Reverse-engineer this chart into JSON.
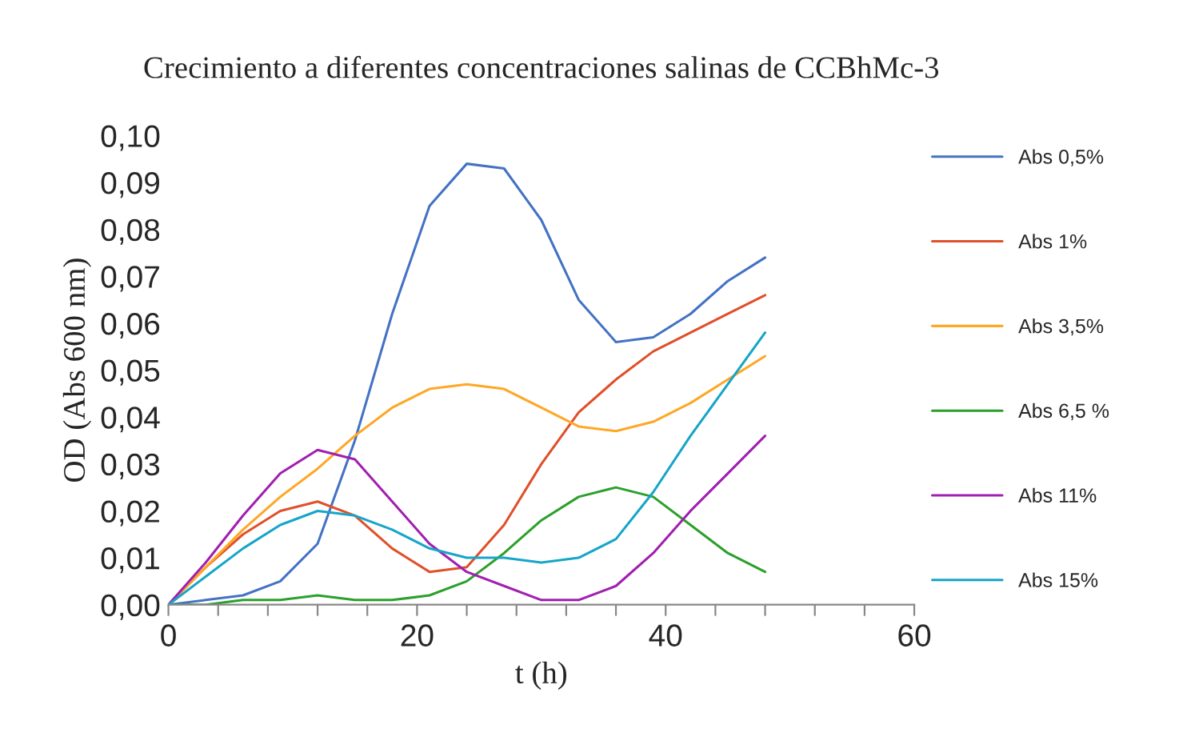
{
  "chart_data": {
    "type": "line",
    "title": "Crecimiento a diferentes concentraciones salinas de CCBhMc-3",
    "xlabel": "t (h)",
    "ylabel": "OD (Abs 600 nm)",
    "x": [
      0,
      3,
      6,
      9,
      12,
      15,
      18,
      21,
      24,
      27,
      30,
      33,
      36,
      39,
      42,
      45,
      48
    ],
    "series": [
      {
        "name": "Abs 0,5%",
        "color": "#4472c4",
        "values": [
          0,
          0.001,
          0.002,
          0.005,
          0.013,
          0.035,
          0.062,
          0.085,
          0.094,
          0.093,
          0.082,
          0.065,
          0.056,
          0.057,
          0.062,
          0.069,
          0.074
        ]
      },
      {
        "name": "Abs 1%",
        "color": "#e0502a",
        "values": [
          0,
          0.008,
          0.015,
          0.02,
          0.022,
          0.019,
          0.012,
          0.007,
          0.008,
          0.017,
          0.03,
          0.041,
          0.048,
          0.054,
          0.058,
          0.062,
          0.066
        ]
      },
      {
        "name": "Abs 3,5%",
        "color": "#ffa726",
        "values": [
          0,
          0.008,
          0.016,
          0.023,
          0.029,
          0.036,
          0.042,
          0.046,
          0.047,
          0.046,
          0.042,
          0.038,
          0.037,
          0.039,
          0.043,
          0.048,
          0.053
        ]
      },
      {
        "name": "Abs 6,5 %",
        "color": "#2ca02c",
        "values": [
          0,
          0.0,
          0.001,
          0.001,
          0.002,
          0.001,
          0.001,
          0.002,
          0.005,
          0.011,
          0.018,
          0.023,
          0.025,
          0.023,
          0.017,
          0.011,
          0.007
        ]
      },
      {
        "name": "Abs 11%",
        "color": "#a020b0",
        "values": [
          0,
          0.009,
          0.019,
          0.028,
          0.033,
          0.031,
          0.022,
          0.013,
          0.007,
          0.004,
          0.001,
          0.001,
          0.004,
          0.011,
          0.02,
          0.028,
          0.036
        ]
      },
      {
        "name": "Abs 15%",
        "color": "#17a5c8",
        "values": [
          0,
          0.006,
          0.012,
          0.017,
          0.02,
          0.019,
          0.016,
          0.012,
          0.01,
          0.01,
          0.009,
          0.01,
          0.014,
          0.024,
          0.036,
          0.047,
          0.058
        ]
      }
    ],
    "xlim": [
      0,
      60
    ],
    "xticks": [
      0,
      {
        "value": 4,
        "label": null
      },
      {
        "value": 8,
        "label": null
      },
      {
        "value": 12,
        "label": null
      },
      {
        "value": 16,
        "label": null
      },
      20,
      {
        "value": 24,
        "label": null
      },
      {
        "value": 28,
        "label": null
      },
      {
        "value": 32,
        "label": null
      },
      {
        "value": 36,
        "label": null
      },
      40,
      {
        "value": 44,
        "label": null
      },
      {
        "value": 48,
        "label": null
      },
      {
        "value": 52,
        "label": null
      },
      {
        "value": 56,
        "label": null
      },
      60
    ],
    "ylim": [
      0,
      0.1
    ],
    "yticks": [
      {
        "value": 0,
        "label": "0,00"
      },
      {
        "value": 0.01,
        "label": "0,01"
      },
      {
        "value": 0.02,
        "label": "0,02"
      },
      {
        "value": 0.03,
        "label": "0,03"
      },
      {
        "value": 0.04,
        "label": "0,04"
      },
      {
        "value": 0.05,
        "label": "0,05"
      },
      {
        "value": 0.06,
        "label": "0,06"
      },
      {
        "value": 0.07,
        "label": "0,07"
      },
      {
        "value": 0.08,
        "label": "0,08"
      },
      {
        "value": 0.09,
        "label": "0,09"
      },
      {
        "value": 0.1,
        "label": "0,10"
      }
    ],
    "grid": false,
    "legend": "right",
    "marker": "none",
    "line_style": "solid"
  }
}
